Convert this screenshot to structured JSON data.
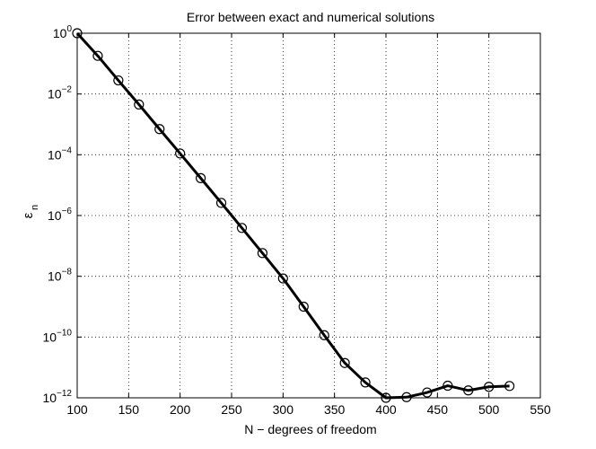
{
  "chart_data": {
    "type": "line",
    "title": "Error between exact and numerical solutions",
    "xlabel": "N − degrees of freedom",
    "ylabel": "ε",
    "ylabel_subscript": "n",
    "xlim": [
      100,
      550
    ],
    "ylim": [
      1e-12,
      1
    ],
    "yscale": "log",
    "grid": true,
    "xticks": [
      100,
      150,
      200,
      250,
      300,
      350,
      400,
      450,
      500,
      550
    ],
    "yticks": [
      {
        "base": "10",
        "exp": "0",
        "value": 1
      },
      {
        "base": "10",
        "exp": "−2",
        "value": 0.01
      },
      {
        "base": "10",
        "exp": "−4",
        "value": 0.0001
      },
      {
        "base": "10",
        "exp": "−6",
        "value": 1e-06
      },
      {
        "base": "10",
        "exp": "−8",
        "value": 1e-08
      },
      {
        "base": "10",
        "exp": "−10",
        "value": 1e-10
      },
      {
        "base": "10",
        "exp": "−12",
        "value": 1e-12
      }
    ],
    "series": [
      {
        "x": [
          100,
          120,
          140,
          160,
          180,
          200,
          220,
          240,
          260,
          280,
          300,
          320,
          340,
          360,
          380,
          400,
          420,
          440,
          460,
          480,
          500,
          520
        ],
        "y": [
          1,
          0.18,
          0.028,
          0.0045,
          0.0007,
          0.00011,
          1.7e-05,
          2.6e-06,
          3.9e-07,
          5.8e-08,
          8.5e-09,
          1e-09,
          1.15e-10,
          1.4e-11,
          3.2e-12,
          1e-12,
          1.05e-12,
          1.5e-12,
          2.5e-12,
          1.75e-12,
          2.3e-12,
          2.45e-12
        ],
        "marker": "circle"
      }
    ]
  }
}
